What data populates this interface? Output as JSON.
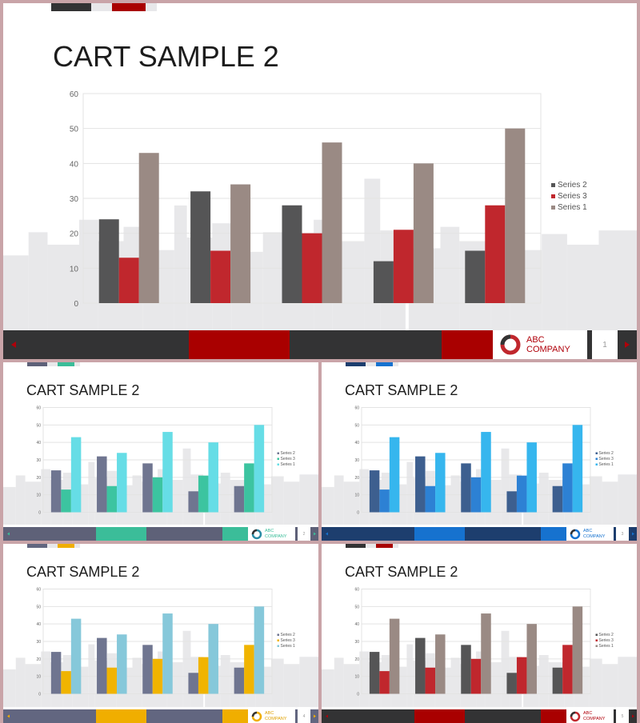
{
  "slide_title": "CART SAMPLE 2",
  "company": {
    "line1": "ABC",
    "line2": "COMPANY"
  },
  "chart_data": {
    "type": "bar",
    "categories": [
      "",
      "",
      "",
      "",
      ""
    ],
    "series": [
      {
        "name": "Series 2",
        "values": [
          24,
          32,
          28,
          12,
          15
        ]
      },
      {
        "name": "Series 3",
        "values": [
          13,
          15,
          20,
          21,
          28
        ]
      },
      {
        "name": "Series 1",
        "values": [
          43,
          34,
          46,
          40,
          50
        ]
      }
    ],
    "ylim": [
      0,
      60
    ],
    "yticks": [
      "0",
      "10",
      "20",
      "30",
      "40",
      "50",
      "60"
    ],
    "grid": true,
    "legend_placement": "right",
    "legend_order": [
      "Series 2",
      "Series 3",
      "Series 1"
    ]
  },
  "slides": [
    {
      "id": "main",
      "page_number": "1",
      "colors": {
        "s2": "#555556",
        "s3": "#c0272d",
        "s1": "#9a8a84",
        "dark": "#333334",
        "accent": "#a90000",
        "arrow": "#b0000a",
        "ring": "#c0272d",
        "text": "#b0000a"
      }
    },
    {
      "id": "teal",
      "page_number": "2",
      "colors": {
        "s2": "#6f7590",
        "s3": "#3cc4a0",
        "s1": "#66dde6",
        "dark": "#5e6178",
        "accent": "#3bbd99",
        "arrow": "#3bbd99",
        "ring": "#2a8ca5",
        "text": "#3bbd99"
      }
    },
    {
      "id": "blue",
      "page_number": "3",
      "colors": {
        "s2": "#3d5f8f",
        "s3": "#2d81d4",
        "s1": "#36b6ee",
        "dark": "#1d3e6e",
        "accent": "#1672cf",
        "arrow": "#1672cf",
        "ring": "#1672cf",
        "text": "#1672cf"
      }
    },
    {
      "id": "yellow",
      "page_number": "4",
      "colors": {
        "s2": "#6f7590",
        "s3": "#f0b400",
        "s1": "#86c8da",
        "dark": "#626680",
        "accent": "#f0ae00",
        "arrow": "#f0ae00",
        "ring": "#f0ae00",
        "text": "#e0a000"
      }
    },
    {
      "id": "red",
      "page_number": "5",
      "colors": {
        "s2": "#555556",
        "s3": "#c0272d",
        "s1": "#9a8a84",
        "dark": "#333334",
        "accent": "#a90000",
        "arrow": "#b0000a",
        "ring": "#c0272d",
        "text": "#b0000a"
      }
    }
  ]
}
